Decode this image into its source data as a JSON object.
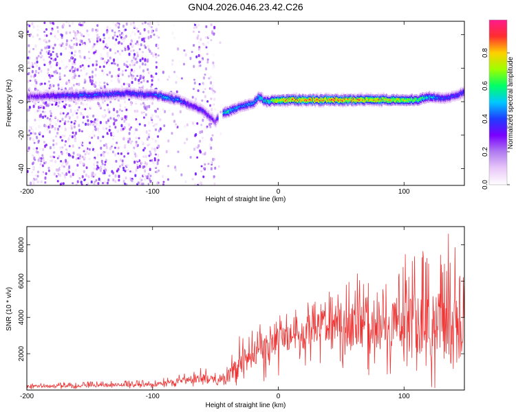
{
  "title": "GN04.2026.046.23.42.C26",
  "chart_data": [
    {
      "type": "heatmap",
      "title": "GN04.2026.046.23.42.C26",
      "xlabel": "Height of straight line (km)",
      "ylabel": "Frequency (Hz)",
      "xlim": [
        -200,
        148
      ],
      "ylim": [
        -50,
        48
      ],
      "xticks": [
        -200,
        -100,
        0,
        100
      ],
      "xtick_labels": [
        "-200",
        "-100",
        "0",
        "100"
      ],
      "yticks": [
        -40,
        -20,
        0,
        20,
        40
      ],
      "ytick_labels": [
        "-40",
        "-20",
        "0",
        "20",
        "40"
      ],
      "colorbar": {
        "label": "Normalized spectral amplitude",
        "range": [
          0,
          1
        ],
        "ticks": [
          0,
          0.2,
          0.4,
          0.6,
          0.8
        ],
        "tick_labels": [
          "0.0",
          "0.2",
          "0.4",
          "0.6",
          "0.8"
        ],
        "colors": [
          "#ffffff",
          "#e9c8f8",
          "#b07cf0",
          "#7a00ff",
          "#1f3cff",
          "#00c8ff",
          "#00ff66",
          "#9dff00",
          "#ffd000",
          "#ff2e2e",
          "#ff1a8c"
        ]
      },
      "ridge": {
        "x": [
          -200,
          -150,
          -120,
          -100,
          -90,
          -80,
          -70,
          -60,
          -50,
          -45,
          -40,
          -30,
          -20,
          -15,
          -10,
          0,
          20,
          40,
          60,
          80,
          100,
          110,
          120,
          130,
          140,
          148
        ],
        "freq": [
          3,
          4,
          5,
          4,
          3,
          1,
          -2,
          -5,
          -12,
          -7,
          -6,
          -3,
          -1,
          3,
          0,
          1,
          1,
          1,
          1,
          1,
          1,
          1,
          3,
          2,
          3,
          6
        ],
        "amplitude": [
          0.3,
          0.45,
          0.4,
          0.42,
          0.5,
          0.45,
          0.35,
          0.38,
          0.3,
          0.5,
          0.6,
          0.45,
          0.5,
          0.55,
          0.55,
          0.85,
          0.9,
          0.9,
          0.88,
          0.85,
          0.78,
          0.7,
          0.55,
          0.45,
          0.4,
          0.4
        ]
      }
    },
    {
      "type": "line",
      "xlabel": "Height of straight line (km)",
      "ylabel": "SNR (10 * v/v)",
      "xlim": [
        -200,
        148
      ],
      "ylim": [
        0,
        9000
      ],
      "xticks": [
        -200,
        -100,
        0,
        100
      ],
      "xtick_labels": [
        "-200",
        "-100",
        "0",
        "100"
      ],
      "yticks": [
        2000,
        4000,
        6000,
        8000
      ],
      "ytick_labels": [
        "2000",
        "4000",
        "6000",
        "8000"
      ],
      "color": "#ee3333",
      "envelope": {
        "x": [
          -200,
          -150,
          -100,
          -80,
          -60,
          -45,
          -30,
          -20,
          -10,
          0,
          20,
          40,
          60,
          80,
          100,
          120,
          130,
          140,
          148
        ],
        "mean": [
          200,
          250,
          300,
          450,
          700,
          400,
          1400,
          2000,
          2300,
          2800,
          3100,
          3600,
          3700,
          3300,
          3800,
          3400,
          3600,
          3300,
          3000
        ],
        "max": [
          350,
          500,
          550,
          900,
          1300,
          900,
          3200,
          3500,
          3800,
          4200,
          4800,
          5500,
          6600,
          5400,
          7500,
          7700,
          8300,
          9000,
          6000
        ],
        "min": [
          50,
          50,
          100,
          100,
          150,
          50,
          300,
          400,
          400,
          600,
          900,
          800,
          800,
          700,
          300,
          100,
          100,
          100,
          200
        ]
      }
    }
  ]
}
